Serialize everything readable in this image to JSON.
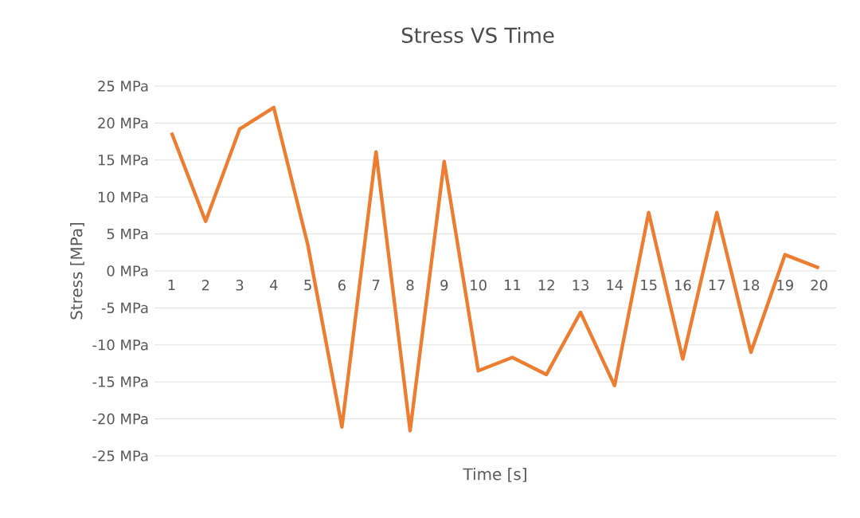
{
  "chart_data": {
    "type": "line",
    "title": "Stress VS Time",
    "xlabel": "Time [s]",
    "ylabel": "Stress [MPa]",
    "categories": [
      "1",
      "2",
      "3",
      "4",
      "5",
      "6",
      "7",
      "8",
      "9",
      "10",
      "11",
      "12",
      "13",
      "14",
      "15",
      "16",
      "17",
      "18",
      "19",
      "20"
    ],
    "series": [
      {
        "color": "#ed7d31",
        "values": [
          18.7,
          6.7,
          19.2,
          22.1,
          3.5,
          -21.1,
          16.1,
          -21.6,
          14.8,
          -13.5,
          -11.7,
          -14.0,
          -5.6,
          -15.5,
          7.9,
          -11.9,
          7.9,
          -11.0,
          2.2,
          0.4
        ]
      }
    ],
    "ylim": [
      -25,
      25
    ],
    "yticks": [
      {
        "value": 25,
        "label": "25 MPa"
      },
      {
        "value": 20,
        "label": "20 MPa"
      },
      {
        "value": 15,
        "label": "15 MPa"
      },
      {
        "value": 10,
        "label": "10 MPa"
      },
      {
        "value": 5,
        "label": "5 MPa"
      },
      {
        "value": 0,
        "label": "0 MPa"
      },
      {
        "value": -5,
        "label": "-5 MPa"
      },
      {
        "value": -10,
        "label": "-10 MPa"
      },
      {
        "value": -15,
        "label": "-15 MPa"
      },
      {
        "value": -20,
        "label": "-20 MPa"
      },
      {
        "value": -25,
        "label": "-25 MPa"
      }
    ],
    "grid": "y",
    "legend": false,
    "marker": "none",
    "line_style": "solid"
  }
}
